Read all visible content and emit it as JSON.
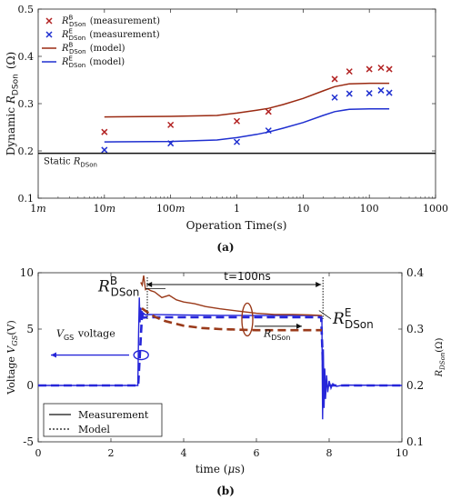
{
  "chart_data": [
    {
      "type": "scatter",
      "panel_label": "(a)",
      "xlabel": "Operation Time(s)",
      "ylabel": "Dynamic R_DSon (Ω)",
      "x_scale": "log",
      "xlim": [
        0.001,
        1000
      ],
      "ylim": [
        0.1,
        0.5
      ],
      "x_ticks": [
        {
          "v": 0.001,
          "label": "1m"
        },
        {
          "v": 0.01,
          "label": "10m"
        },
        {
          "v": 0.1,
          "label": "100m"
        },
        {
          "v": 1,
          "label": "1"
        },
        {
          "v": 10,
          "label": "10"
        },
        {
          "v": 100,
          "label": "100"
        },
        {
          "v": 1000,
          "label": "1000"
        }
      ],
      "y_ticks": [
        0.1,
        0.2,
        0.3,
        0.4,
        0.5
      ],
      "grid": false,
      "legend_placement": "top-left",
      "legend": [
        {
          "sym": "R",
          "sup": "B",
          "sub": "DSon",
          "text": " (measurement)",
          "color": "#b22222",
          "marker": "x"
        },
        {
          "sym": "R",
          "sup": "E",
          "sub": "DSon",
          "text": " (measurement)",
          "color": "#1f2fd0",
          "marker": "x"
        },
        {
          "sym": "R",
          "sup": "B",
          "sub": "DSon",
          "text": " (model)",
          "color": "#9a2a12",
          "marker": "line"
        },
        {
          "sym": "R",
          "sup": "E",
          "sub": "DSon",
          "text": " (model)",
          "color": "#1f2fd0",
          "marker": "line"
        }
      ],
      "static_label": {
        "text": "Static ",
        "sym": "R",
        "sub": "DSon",
        "value": 0.195
      },
      "series": [
        {
          "kind": "points",
          "color": "#b22222",
          "x": [
            0.01,
            0.1,
            1,
            3,
            30,
            50,
            100,
            150,
            200
          ],
          "y": [
            0.24,
            0.255,
            0.263,
            0.283,
            0.352,
            0.368,
            0.373,
            0.376,
            0.373
          ]
        },
        {
          "kind": "points",
          "color": "#1f2fd0",
          "x": [
            0.01,
            0.1,
            1,
            3,
            30,
            50,
            100,
            150,
            200
          ],
          "y": [
            0.202,
            0.216,
            0.219,
            0.243,
            0.313,
            0.321,
            0.322,
            0.328,
            0.323
          ]
        },
        {
          "kind": "line",
          "color": "#9a2a12",
          "x": [
            0.01,
            0.1,
            0.5,
            1,
            2,
            3,
            5,
            10,
            20,
            30,
            50,
            100,
            200
          ],
          "y": [
            0.272,
            0.273,
            0.275,
            0.28,
            0.286,
            0.29,
            0.298,
            0.311,
            0.327,
            0.336,
            0.342,
            0.343,
            0.343
          ]
        },
        {
          "kind": "line",
          "color": "#1f2fd0",
          "x": [
            0.01,
            0.1,
            0.5,
            1,
            2,
            3,
            5,
            10,
            20,
            30,
            50,
            100,
            200
          ],
          "y": [
            0.219,
            0.22,
            0.223,
            0.228,
            0.235,
            0.24,
            0.248,
            0.26,
            0.275,
            0.283,
            0.288,
            0.289,
            0.289
          ]
        },
        {
          "kind": "line",
          "color": "#111111",
          "x": [
            0.001,
            1000
          ],
          "y": [
            0.195,
            0.195
          ]
        }
      ]
    },
    {
      "type": "line",
      "panel_label": "(b)",
      "xlabel": "time (μs)",
      "ylabel_left": "Voltage V_GS(V)",
      "ylabel_right": "R_DSon(Ω)",
      "xlim": [
        0,
        10
      ],
      "ylim_left": [
        -5,
        10
      ],
      "ylim_right": [
        0.1,
        0.4
      ],
      "x_ticks": [
        0,
        2,
        4,
        6,
        8,
        10
      ],
      "y_ticks_left": [
        -5,
        0,
        5,
        10
      ],
      "y_ticks_right": [
        0.1,
        0.2,
        0.3,
        0.4
      ],
      "legend": [
        {
          "text": "Measurement",
          "style": "solid"
        },
        {
          "text": "Model",
          "style": "dotted"
        }
      ],
      "annotations": {
        "t100": "t=100ns",
        "rb": {
          "sym": "R",
          "sup": "B",
          "sub": "DSon"
        },
        "re": {
          "sym": "R",
          "sup": "E",
          "sub": "DSon"
        },
        "vgs": {
          "sym": "V",
          "sub": "GS",
          "text": " voltage"
        },
        "rdson_small": {
          "sym": "R",
          "sub": "DSon"
        }
      },
      "series": [
        {
          "name": "V_GS measurement",
          "axis": "left",
          "color": "#2626d9",
          "style": "solid",
          "x": [
            0,
            2.74,
            2.76,
            2.78,
            2.8,
            2.82,
            2.84,
            2.86,
            2.88,
            2.9,
            2.95,
            3.0,
            3.3,
            4,
            5,
            6,
            7,
            7.7,
            7.8,
            7.82,
            7.84,
            7.86,
            7.88,
            7.9,
            7.93,
            7.96,
            8.0,
            8.05,
            8.1,
            8.2,
            8.4,
            10
          ],
          "y": [
            0,
            0,
            4.5,
            7.8,
            5.6,
            6.9,
            5.9,
            6.6,
            6.1,
            6.4,
            6.25,
            6.3,
            6.28,
            6.25,
            6.22,
            6.2,
            6.2,
            6.2,
            6.0,
            -3.0,
            3.2,
            -2.0,
            1.5,
            -1.2,
            0.9,
            -0.6,
            0.4,
            -0.25,
            0.15,
            -0.08,
            0.03,
            0
          ]
        },
        {
          "name": "V_GS model",
          "axis": "left",
          "color": "#2626d9",
          "style": "dashed",
          "x": [
            0,
            2.75,
            2.85,
            3.0,
            4,
            5,
            6,
            7,
            7.78,
            7.85,
            8.0,
            10
          ],
          "y": [
            0,
            0,
            6.0,
            6.05,
            6.05,
            6.05,
            6.05,
            6.05,
            6.05,
            0,
            0,
            0
          ]
        },
        {
          "name": "R_DSon measurement",
          "axis": "right",
          "color": "#9a3a1a",
          "style": "solid",
          "x": [
            2.82,
            2.86,
            2.9,
            2.95,
            3.0,
            3.1,
            3.2,
            3.4,
            3.6,
            3.8,
            4.0,
            4.3,
            4.6,
            5.0,
            5.5,
            6.0,
            6.5,
            7.0,
            7.5,
            7.8
          ],
          "y": [
            0.383,
            0.378,
            0.395,
            0.37,
            0.372,
            0.368,
            0.366,
            0.356,
            0.36,
            0.352,
            0.348,
            0.345,
            0.34,
            0.336,
            0.332,
            0.328,
            0.326,
            0.326,
            0.325,
            0.324
          ]
        },
        {
          "name": "R_DSon model",
          "axis": "right",
          "color": "#9a3a1a",
          "style": "dashed",
          "x": [
            2.85,
            3.0,
            3.2,
            3.5,
            4.0,
            4.5,
            5.0,
            5.5,
            6.0,
            7.0,
            7.8
          ],
          "y": [
            0.337,
            0.33,
            0.322,
            0.314,
            0.306,
            0.302,
            0.3,
            0.299,
            0.298,
            0.298,
            0.298
          ]
        }
      ]
    }
  ]
}
